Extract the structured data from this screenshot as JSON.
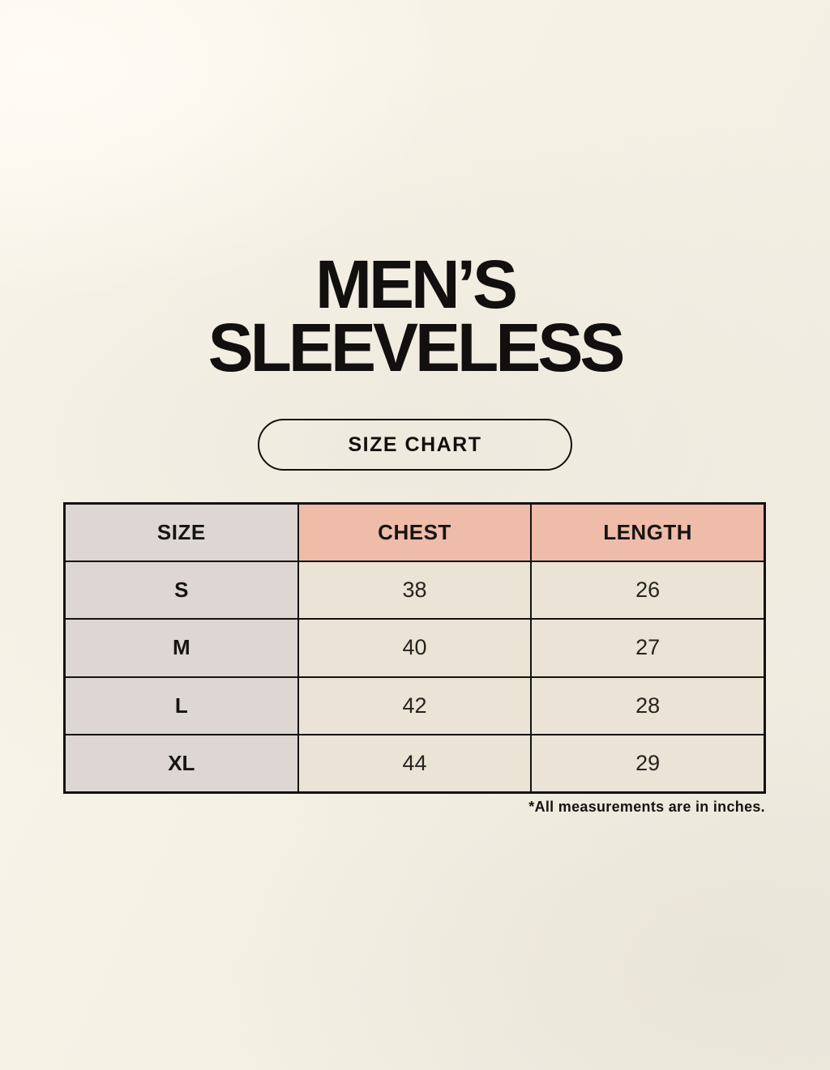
{
  "page": {
    "title_line1": "MEN’S",
    "title_line2": "SLEEVELESS",
    "badge_label": "SIZE CHART",
    "footnote": "*All measurements are in inches."
  },
  "colors": {
    "background": "#f6f2e6",
    "size_column_bg": "#ddd6d2",
    "measure_header_bg": "#eebca8",
    "data_cell_bg": "#eae3d6",
    "table_border": "#141210",
    "text": "#12100e"
  },
  "chart_data": {
    "type": "table",
    "title": "MEN’S SLEEVELESS SIZE CHART",
    "columns": [
      "SIZE",
      "CHEST",
      "LENGTH"
    ],
    "rows": [
      [
        "S",
        "38",
        "26"
      ],
      [
        "M",
        "40",
        "27"
      ],
      [
        "L",
        "42",
        "28"
      ],
      [
        "XL",
        "44",
        "29"
      ]
    ],
    "units_note": "*All measurements are in inches."
  }
}
